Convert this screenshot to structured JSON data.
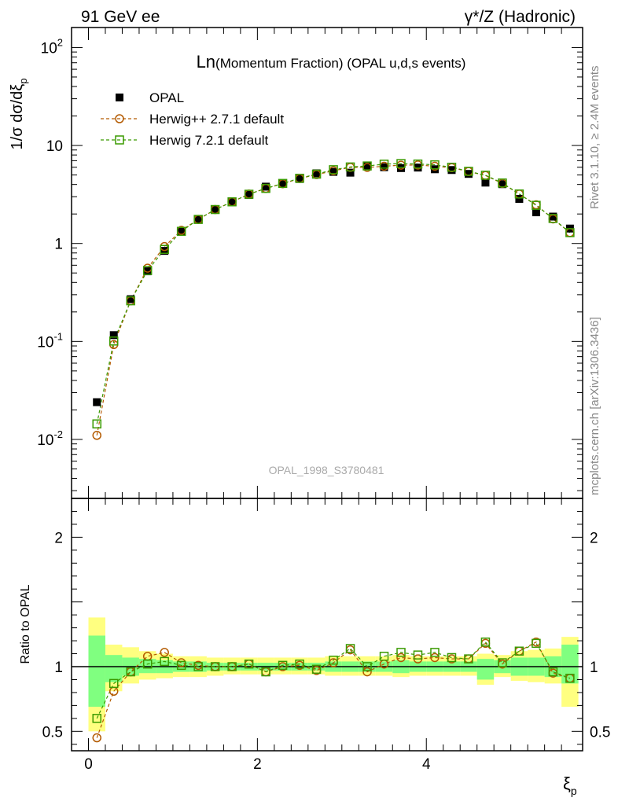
{
  "header": {
    "left": "91 GeV ee",
    "right": "γ*/Z (Hadronic)"
  },
  "side_labels": {
    "rivet": "Rivet 3.1.10, ≥ 2.4M events",
    "mcplots": "mcplots.cern.ch [arXiv:1306.3436]"
  },
  "watermark": "OPAL_1998_S3780481",
  "colors": {
    "opal": "#000000",
    "herwig_pp": "#b35a00",
    "herwig7": "#3a9a00",
    "band_inner": "#80ff80",
    "band_outer": "#ffff80"
  },
  "chart_data": [
    {
      "type": "line",
      "title": "Ln(Momentum Fraction) (OPAL u,d,s events)",
      "title_main": "Ln",
      "title_rest": "(Momentum Fraction) (OPAL u,d,s events)",
      "ylabel": "1/σ dσ/dξ",
      "ylabel_sub": "p",
      "yscale": "log",
      "ylim": [
        0.0025,
        160
      ],
      "xlim": [
        -0.2,
        5.85
      ],
      "y_ticks": [
        {
          "value": 0.01,
          "base": "10",
          "exp": "-2"
        },
        {
          "value": 0.1,
          "base": "10",
          "exp": "-1"
        },
        {
          "value": 1,
          "base": "1",
          "exp": ""
        },
        {
          "value": 10,
          "base": "10",
          "exp": ""
        },
        {
          "value": 100,
          "base": "10",
          "exp": "2"
        }
      ],
      "legend_position": "top-left",
      "x": [
        0.1,
        0.3,
        0.5,
        0.7,
        0.9,
        1.1,
        1.3,
        1.5,
        1.7,
        1.9,
        2.1,
        2.3,
        2.5,
        2.7,
        2.9,
        3.1,
        3.3,
        3.5,
        3.7,
        3.9,
        4.1,
        4.3,
        4.5,
        4.7,
        4.9,
        5.1,
        5.3,
        5.5,
        5.7
      ],
      "series": [
        {
          "name": "OPAL",
          "marker": "filled-square",
          "values": [
            0.024,
            0.116,
            0.27,
            0.52,
            0.84,
            1.32,
            1.75,
            2.22,
            2.66,
            3.13,
            3.8,
            4.07,
            4.55,
            5.2,
            5.38,
            5.28,
            6.18,
            6.0,
            5.88,
            5.95,
            5.72,
            5.62,
            5.13,
            4.18,
            4.03,
            2.85,
            2.08,
            1.88,
            1.42
          ]
        },
        {
          "name": "Herwig++ 2.7.1 default",
          "marker": "open-circle",
          "values": [
            0.011,
            0.093,
            0.26,
            0.56,
            0.93,
            1.36,
            1.76,
            2.22,
            2.66,
            3.19,
            3.65,
            4.07,
            4.6,
            5.05,
            5.52,
            5.98,
            5.97,
            6.14,
            6.3,
            6.32,
            6.14,
            5.94,
            5.43,
            4.94,
            4.1,
            3.19,
            2.48,
            1.78,
            1.29
          ]
        },
        {
          "name": "Herwig 7.2.1 default",
          "marker": "open-square",
          "values": [
            0.0144,
            0.101,
            0.26,
            0.53,
            0.87,
            1.33,
            1.76,
            2.22,
            2.66,
            3.18,
            3.65,
            4.1,
            4.63,
            5.1,
            5.66,
            6.04,
            6.18,
            6.45,
            6.54,
            6.47,
            6.35,
            6.0,
            5.45,
            4.97,
            4.14,
            3.2,
            2.45,
            1.8,
            1.29
          ]
        }
      ]
    },
    {
      "type": "line",
      "ylabel": "Ratio to OPAL",
      "xlabel": "ξ",
      "xlabel_sub": "p",
      "ylim": [
        0.35,
        2.3
      ],
      "xlim": [
        -0.2,
        5.85
      ],
      "x_ticks": [
        0,
        2,
        4
      ],
      "y_ticks": [
        0.5,
        1,
        2
      ],
      "x": [
        0.1,
        0.3,
        0.5,
        0.7,
        0.9,
        1.1,
        1.3,
        1.5,
        1.7,
        1.9,
        2.1,
        2.3,
        2.5,
        2.7,
        2.9,
        3.1,
        3.3,
        3.5,
        3.7,
        3.9,
        4.1,
        4.3,
        4.5,
        4.7,
        4.9,
        5.1,
        5.3,
        5.5,
        5.7
      ],
      "band_halfwidth": 0.1,
      "bands": {
        "inner_low": [
          0.69,
          0.88,
          0.93,
          0.95,
          0.95,
          0.96,
          0.96,
          0.97,
          0.97,
          0.97,
          0.97,
          0.97,
          0.97,
          0.97,
          0.96,
          0.96,
          0.96,
          0.96,
          0.95,
          0.96,
          0.96,
          0.96,
          0.96,
          0.9,
          0.95,
          0.93,
          0.93,
          0.92,
          0.87
        ],
        "inner_high": [
          1.24,
          1.09,
          1.07,
          1.06,
          1.05,
          1.04,
          1.04,
          1.03,
          1.03,
          1.03,
          1.03,
          1.03,
          1.03,
          1.03,
          1.04,
          1.04,
          1.04,
          1.04,
          1.05,
          1.04,
          1.04,
          1.04,
          1.04,
          1.06,
          1.05,
          1.07,
          1.07,
          1.08,
          1.17
        ],
        "outer_low": [
          0.5,
          0.81,
          0.87,
          0.9,
          0.91,
          0.92,
          0.92,
          0.93,
          0.94,
          0.94,
          0.94,
          0.94,
          0.94,
          0.94,
          0.93,
          0.93,
          0.93,
          0.93,
          0.92,
          0.93,
          0.93,
          0.93,
          0.93,
          0.86,
          0.92,
          0.89,
          0.88,
          0.87,
          0.69
        ],
        "outer_high": [
          1.38,
          1.17,
          1.15,
          1.12,
          1.1,
          1.08,
          1.08,
          1.07,
          1.07,
          1.07,
          1.07,
          1.07,
          1.07,
          1.07,
          1.08,
          1.08,
          1.08,
          1.08,
          1.09,
          1.08,
          1.08,
          1.08,
          1.08,
          1.1,
          1.09,
          1.12,
          1.13,
          1.14,
          1.23
        ]
      },
      "series": [
        {
          "name": "Herwig++ 2.7.1 default",
          "marker": "open-circle",
          "values": [
            0.45,
            0.81,
            0.96,
            1.08,
            1.11,
            1.03,
            1.01,
            1.0,
            1.0,
            1.02,
            0.96,
            1.0,
            1.01,
            0.97,
            1.03,
            1.13,
            0.96,
            1.02,
            1.07,
            1.06,
            1.07,
            1.06,
            1.06,
            1.18,
            1.02,
            1.12,
            1.19,
            0.95,
            0.91
          ]
        },
        {
          "name": "Herwig 7.2.1 default",
          "marker": "open-square",
          "values": [
            0.6,
            0.87,
            0.96,
            1.02,
            1.04,
            1.01,
            1.0,
            1.0,
            1.0,
            1.02,
            0.96,
            1.01,
            1.02,
            0.98,
            1.05,
            1.14,
            1.0,
            1.08,
            1.11,
            1.09,
            1.11,
            1.07,
            1.06,
            1.19,
            1.03,
            1.12,
            1.18,
            0.96,
            0.91
          ]
        }
      ]
    }
  ]
}
